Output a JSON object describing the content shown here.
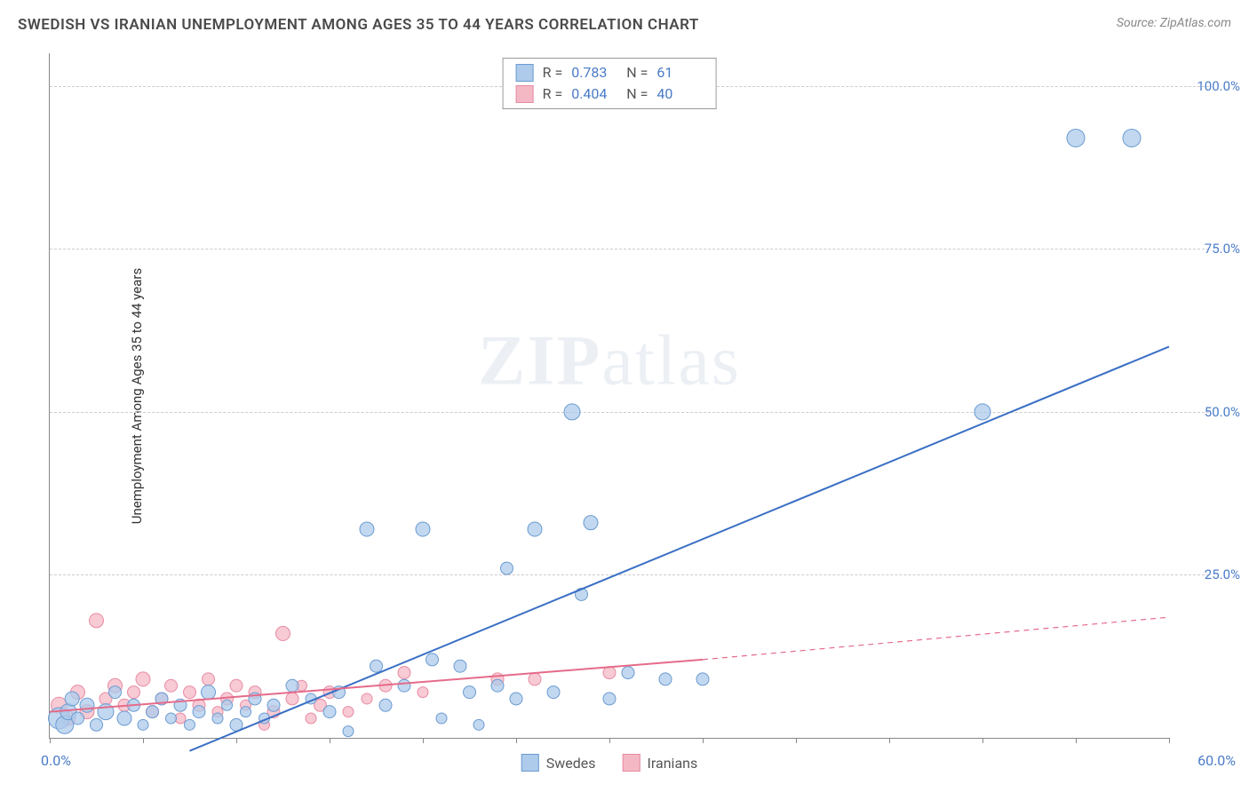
{
  "title": "SWEDISH VS IRANIAN UNEMPLOYMENT AMONG AGES 35 TO 44 YEARS CORRELATION CHART",
  "source": "Source: ZipAtlas.com",
  "ylabel": "Unemployment Among Ages 35 to 44 years",
  "watermark_a": "ZIP",
  "watermark_b": "atlas",
  "chart": {
    "type": "scatter",
    "xlim": [
      0,
      60
    ],
    "ylim": [
      0,
      105
    ],
    "x_min_label": "0.0%",
    "x_max_label": "60.0%",
    "ytick_step": 25,
    "yticks": [
      25,
      50,
      75,
      100
    ],
    "ytick_labels": [
      "25.0%",
      "50.0%",
      "75.0%",
      "100.0%"
    ],
    "xtick_step": 5,
    "grid_color": "#cccccc",
    "axis_color": "#888888",
    "background_color": "#ffffff",
    "label_color": "#4a7bc8",
    "title_color": "#4a4a4a",
    "title_fontsize": 17,
    "label_fontsize": 15
  },
  "series": {
    "swedes": {
      "label": "Swedes",
      "fill": "#aecbeb",
      "stroke": "#6b9bd1",
      "line_color": "#3a6fc4",
      "line_width": 2,
      "marker_radius_base": 7,
      "R": "0.783",
      "N": "61",
      "trend": {
        "x1": 7.5,
        "y1": -2,
        "x2": 60,
        "y2": 60
      },
      "points": [
        [
          0.5,
          3,
          12
        ],
        [
          0.8,
          2,
          10
        ],
        [
          1,
          4,
          9
        ],
        [
          1.2,
          6,
          8
        ],
        [
          1.5,
          3,
          7
        ],
        [
          2,
          5,
          8
        ],
        [
          2.5,
          2,
          7
        ],
        [
          3,
          4,
          9
        ],
        [
          3.5,
          7,
          7
        ],
        [
          4,
          3,
          8
        ],
        [
          4.5,
          5,
          7
        ],
        [
          5,
          2,
          6
        ],
        [
          5.5,
          4,
          7
        ],
        [
          6,
          6,
          7
        ],
        [
          6.5,
          3,
          6
        ],
        [
          7,
          5,
          7
        ],
        [
          7.5,
          2,
          6
        ],
        [
          8,
          4,
          7
        ],
        [
          8.5,
          7,
          8
        ],
        [
          9,
          3,
          6
        ],
        [
          9.5,
          5,
          6
        ],
        [
          10,
          2,
          7
        ],
        [
          10.5,
          4,
          6
        ],
        [
          11,
          6,
          7
        ],
        [
          11.5,
          3,
          6
        ],
        [
          12,
          5,
          7
        ],
        [
          13,
          8,
          7
        ],
        [
          14,
          6,
          6
        ],
        [
          15,
          4,
          7
        ],
        [
          15.5,
          7,
          7
        ],
        [
          16,
          1,
          6
        ],
        [
          17,
          32,
          8
        ],
        [
          17.5,
          11,
          7
        ],
        [
          18,
          5,
          7
        ],
        [
          19,
          8,
          7
        ],
        [
          20,
          32,
          8
        ],
        [
          20.5,
          12,
          7
        ],
        [
          21,
          3,
          6
        ],
        [
          22,
          11,
          7
        ],
        [
          22.5,
          7,
          7
        ],
        [
          23,
          2,
          6
        ],
        [
          24,
          8,
          7
        ],
        [
          24.5,
          26,
          7
        ],
        [
          25,
          6,
          7
        ],
        [
          26,
          32,
          8
        ],
        [
          27,
          7,
          7
        ],
        [
          28,
          50,
          9
        ],
        [
          28.5,
          22,
          7
        ],
        [
          29,
          33,
          8
        ],
        [
          30,
          6,
          7
        ],
        [
          31,
          10,
          7
        ],
        [
          33,
          9,
          7
        ],
        [
          35,
          9,
          7
        ],
        [
          50,
          50,
          9
        ],
        [
          55,
          92,
          10
        ],
        [
          58,
          92,
          10
        ]
      ]
    },
    "iranians": {
      "label": "Iranians",
      "fill": "#f4b8c5",
      "stroke": "#e88ba3",
      "line_color": "#e56b8a",
      "line_width": 2,
      "marker_radius_base": 7,
      "R": "0.404",
      "N": "40",
      "trend_solid": {
        "x1": 0,
        "y1": 4,
        "x2": 35,
        "y2": 12
      },
      "trend_dashed": {
        "x1": 35,
        "y1": 12,
        "x2": 60,
        "y2": 18.5
      },
      "points": [
        [
          0.5,
          5,
          9
        ],
        [
          1,
          3,
          8
        ],
        [
          1.5,
          7,
          8
        ],
        [
          2,
          4,
          8
        ],
        [
          2.5,
          18,
          8
        ],
        [
          3,
          6,
          7
        ],
        [
          3.5,
          8,
          8
        ],
        [
          4,
          5,
          7
        ],
        [
          4.5,
          7,
          7
        ],
        [
          5,
          9,
          8
        ],
        [
          5.5,
          4,
          7
        ],
        [
          6,
          6,
          7
        ],
        [
          6.5,
          8,
          7
        ],
        [
          7,
          3,
          6
        ],
        [
          7.5,
          7,
          7
        ],
        [
          8,
          5,
          7
        ],
        [
          8.5,
          9,
          7
        ],
        [
          9,
          4,
          6
        ],
        [
          9.5,
          6,
          7
        ],
        [
          10,
          8,
          7
        ],
        [
          10.5,
          5,
          6
        ],
        [
          11,
          7,
          7
        ],
        [
          11.5,
          2,
          6
        ],
        [
          12,
          4,
          7
        ],
        [
          12.5,
          16,
          8
        ],
        [
          13,
          6,
          7
        ],
        [
          13.5,
          8,
          6
        ],
        [
          14,
          3,
          6
        ],
        [
          14.5,
          5,
          7
        ],
        [
          15,
          7,
          7
        ],
        [
          16,
          4,
          6
        ],
        [
          17,
          6,
          6
        ],
        [
          18,
          8,
          7
        ],
        [
          19,
          10,
          7
        ],
        [
          20,
          7,
          6
        ],
        [
          24,
          9,
          7
        ],
        [
          26,
          9,
          7
        ],
        [
          30,
          10,
          7
        ]
      ]
    }
  },
  "stats_box": {
    "r_label": "R =",
    "n_label": "N ="
  },
  "legend": {
    "swedes": "Swedes",
    "iranians": "Iranians"
  }
}
